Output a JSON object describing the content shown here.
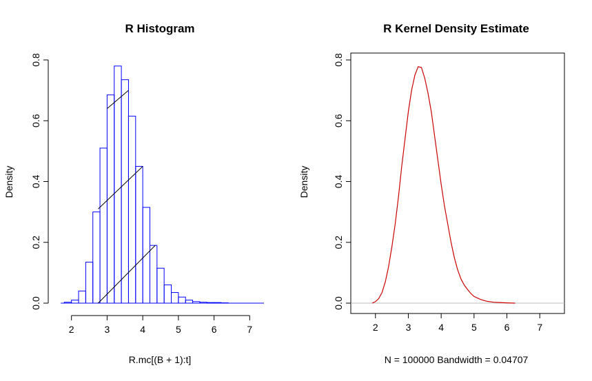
{
  "chart_data": [
    {
      "type": "bar",
      "title": "R Histogram",
      "xlabel": "R.mc[(B + 1):t]",
      "ylabel": "Density",
      "xlim": [
        1.6,
        7.4
      ],
      "ylim": [
        0,
        0.8
      ],
      "x_ticks": [
        2,
        3,
        4,
        5,
        6,
        7
      ],
      "y_ticks": [
        0.0,
        0.2,
        0.4,
        0.6,
        0.8
      ],
      "bin_width": 0.2,
      "bin_starts": [
        1.8,
        2.0,
        2.2,
        2.4,
        2.6,
        2.8,
        3.0,
        3.2,
        3.4,
        3.6,
        3.8,
        4.0,
        4.2,
        4.4,
        4.6,
        4.8,
        5.0,
        5.2,
        5.4,
        5.6,
        5.8,
        6.0,
        6.2
      ],
      "values": [
        0.003,
        0.01,
        0.04,
        0.135,
        0.3,
        0.51,
        0.685,
        0.78,
        0.735,
        0.615,
        0.45,
        0.315,
        0.19,
        0.115,
        0.06,
        0.035,
        0.02,
        0.01,
        0.005,
        0.003,
        0.002,
        0.002,
        0.001
      ],
      "bar_color": "#0000ff",
      "overlay_segments": [
        {
          "x0": 2.75,
          "y0": 0.0,
          "x1": 4.35,
          "y1": 0.19
        },
        {
          "x0": 2.75,
          "y0": 0.31,
          "x1": 4.0,
          "y1": 0.45
        },
        {
          "x0": 3.0,
          "y0": 0.64,
          "x1": 3.6,
          "y1": 0.7
        }
      ],
      "overlay_color": "#000000",
      "grid": false
    },
    {
      "type": "line",
      "title": "R Kernel Density Estimate",
      "xlabel": "N = 100000   Bandwidth = 0.04707",
      "ylabel": "Density",
      "xlim": [
        1.25,
        7.75
      ],
      "ylim": [
        0,
        0.8
      ],
      "x_ticks": [
        2,
        3,
        4,
        5,
        6,
        7
      ],
      "y_ticks": [
        0.0,
        0.2,
        0.4,
        0.6,
        0.8
      ],
      "series": [
        {
          "x": [
            1.9,
            2.0,
            2.1,
            2.2,
            2.3,
            2.4,
            2.5,
            2.6,
            2.7,
            2.8,
            2.9,
            3.0,
            3.1,
            3.2,
            3.3,
            3.4,
            3.5,
            3.6,
            3.7,
            3.8,
            3.9,
            4.0,
            4.1,
            4.2,
            4.3,
            4.4,
            4.5,
            4.6,
            4.7,
            4.8,
            4.9,
            5.0,
            5.2,
            5.4,
            5.6,
            5.8,
            6.0,
            6.25
          ],
          "y": [
            0.0,
            0.005,
            0.015,
            0.035,
            0.07,
            0.12,
            0.185,
            0.26,
            0.35,
            0.45,
            0.54,
            0.63,
            0.7,
            0.75,
            0.778,
            0.775,
            0.74,
            0.69,
            0.63,
            0.55,
            0.47,
            0.39,
            0.32,
            0.26,
            0.2,
            0.15,
            0.11,
            0.08,
            0.06,
            0.045,
            0.032,
            0.022,
            0.012,
            0.006,
            0.003,
            0.002,
            0.001,
            0.0
          ],
          "color": "#cc0000"
        }
      ],
      "baseline_y": 0,
      "baseline_color": "#bebebe",
      "grid": false
    }
  ]
}
